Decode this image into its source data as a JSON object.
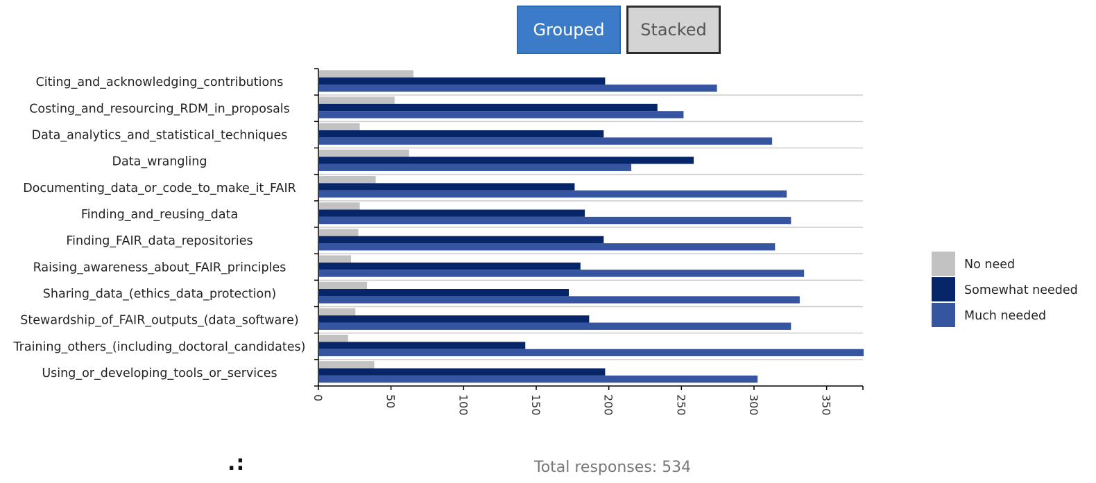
{
  "controls": {
    "grouped_label": "Grouped",
    "stacked_label": "Stacked"
  },
  "footer": {
    "dots": ".:",
    "total_responses": "Total responses: 534"
  },
  "colors": {
    "no_need": "#c2c2c2",
    "somewhat_needed": "#072669",
    "much_needed": "#3655a0",
    "grid": "#cccccc",
    "axis": "#000000"
  },
  "chart_data": {
    "type": "bar",
    "orientation": "horizontal",
    "mode": "grouped",
    "categories": [
      "Citing_and_acknowledging_contributions",
      "Costing_and_resourcing_RDM_in_proposals",
      "Data_analytics_and_statistical_techniques",
      "Data_wrangling",
      "Documenting_data_or_code_to_make_it_FAIR",
      "Finding_and_reusing_data",
      "Finding_FAIR_data_repositories",
      "Raising_awareness_about_FAIR_principles",
      "Sharing_data_(ethics_data_protection)",
      "Stewardship_of_FAIR_outputs_(data_software)",
      "Training_others_(including_doctoral_candidates)",
      "Using_or_developing_tools_or_services"
    ],
    "series": [
      {
        "name": "No need",
        "values": [
          65,
          52,
          28,
          62,
          39,
          28,
          27,
          22,
          33,
          25,
          20,
          38
        ]
      },
      {
        "name": "Somewhat needed",
        "values": [
          197,
          233,
          196,
          258,
          176,
          183,
          196,
          180,
          172,
          186,
          142,
          197
        ]
      },
      {
        "name": "Much needed",
        "values": [
          274,
          251,
          312,
          215,
          322,
          325,
          314,
          334,
          331,
          325,
          375,
          302
        ]
      }
    ],
    "x_ticks": [
      "0",
      "50",
      "100",
      "150",
      "200",
      "250",
      "300",
      "350"
    ],
    "xlim": [
      0,
      375
    ],
    "grid": true,
    "legend_position": "right",
    "title": "",
    "xlabel": "",
    "ylabel": ""
  }
}
